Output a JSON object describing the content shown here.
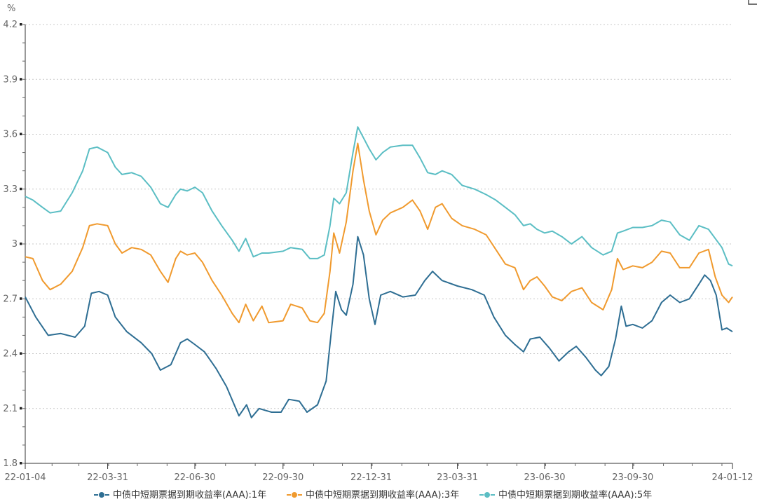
{
  "chart_data": {
    "type": "line",
    "unit": "%",
    "ylim": [
      1.8,
      4.2
    ],
    "yticks": [
      "4.2",
      "3.9",
      "3.6",
      "3.3",
      "3",
      "2.7",
      "2.4",
      "2.1",
      "1.8"
    ],
    "ytick_values": [
      4.2,
      3.9,
      3.6,
      3.3,
      3.0,
      2.7,
      2.4,
      2.1,
      1.8
    ],
    "x_range": [
      "2022-01-04",
      "2024-01-12"
    ],
    "xticks": [
      {
        "label": "22-01-04",
        "date": "2022-01-04"
      },
      {
        "label": "22-03-31",
        "date": "2022-03-31"
      },
      {
        "label": "22-06-30",
        "date": "2022-06-30"
      },
      {
        "label": "22-09-30",
        "date": "2022-09-30"
      },
      {
        "label": "22-12-31",
        "date": "2022-12-31"
      },
      {
        "label": "23-03-31",
        "date": "2023-03-31"
      },
      {
        "label": "23-06-30",
        "date": "2023-06-30"
      },
      {
        "label": "23-09-30",
        "date": "2023-09-30"
      },
      {
        "label": "24-01-12",
        "date": "2024-01-12"
      }
    ],
    "grid": true,
    "legend_position": "bottom",
    "series": [
      {
        "name": "中债中短期票据到期收益率(AAA):1年",
        "color": "#2e6e93",
        "points": [
          [
            "2022-01-04",
            2.71
          ],
          [
            "2022-01-15",
            2.6
          ],
          [
            "2022-01-28",
            2.5
          ],
          [
            "2022-02-10",
            2.51
          ],
          [
            "2022-02-25",
            2.49
          ],
          [
            "2022-03-07",
            2.55
          ],
          [
            "2022-03-14",
            2.73
          ],
          [
            "2022-03-22",
            2.74
          ],
          [
            "2022-03-31",
            2.72
          ],
          [
            "2022-04-08",
            2.6
          ],
          [
            "2022-04-20",
            2.52
          ],
          [
            "2022-05-05",
            2.46
          ],
          [
            "2022-05-16",
            2.4
          ],
          [
            "2022-05-25",
            2.31
          ],
          [
            "2022-06-05",
            2.34
          ],
          [
            "2022-06-15",
            2.46
          ],
          [
            "2022-06-22",
            2.48
          ],
          [
            "2022-06-30",
            2.45
          ],
          [
            "2022-07-10",
            2.41
          ],
          [
            "2022-07-22",
            2.32
          ],
          [
            "2022-08-02",
            2.22
          ],
          [
            "2022-08-15",
            2.06
          ],
          [
            "2022-08-23",
            2.12
          ],
          [
            "2022-08-28",
            2.05
          ],
          [
            "2022-09-05",
            2.1
          ],
          [
            "2022-09-18",
            2.08
          ],
          [
            "2022-09-28",
            2.08
          ],
          [
            "2022-10-06",
            2.15
          ],
          [
            "2022-10-17",
            2.14
          ],
          [
            "2022-10-25",
            2.08
          ],
          [
            "2022-11-05",
            2.12
          ],
          [
            "2022-11-14",
            2.25
          ],
          [
            "2022-11-20",
            2.55
          ],
          [
            "2022-11-24",
            2.74
          ],
          [
            "2022-11-30",
            2.64
          ],
          [
            "2022-12-05",
            2.61
          ],
          [
            "2022-12-12",
            2.78
          ],
          [
            "2022-12-17",
            3.04
          ],
          [
            "2022-12-23",
            2.94
          ],
          [
            "2022-12-29",
            2.7
          ],
          [
            "2023-01-04",
            2.56
          ],
          [
            "2023-01-10",
            2.72
          ],
          [
            "2023-01-20",
            2.74
          ],
          [
            "2023-02-02",
            2.71
          ],
          [
            "2023-02-15",
            2.72
          ],
          [
            "2023-02-25",
            2.8
          ],
          [
            "2023-03-05",
            2.85
          ],
          [
            "2023-03-15",
            2.8
          ],
          [
            "2023-03-31",
            2.77
          ],
          [
            "2023-04-15",
            2.75
          ],
          [
            "2023-04-28",
            2.72
          ],
          [
            "2023-05-08",
            2.6
          ],
          [
            "2023-05-20",
            2.5
          ],
          [
            "2023-05-30",
            2.45
          ],
          [
            "2023-06-08",
            2.41
          ],
          [
            "2023-06-15",
            2.48
          ],
          [
            "2023-06-25",
            2.49
          ],
          [
            "2023-07-05",
            2.43
          ],
          [
            "2023-07-15",
            2.36
          ],
          [
            "2023-07-25",
            2.41
          ],
          [
            "2023-08-02",
            2.44
          ],
          [
            "2023-08-12",
            2.38
          ],
          [
            "2023-08-22",
            2.31
          ],
          [
            "2023-08-28",
            2.28
          ],
          [
            "2023-09-05",
            2.33
          ],
          [
            "2023-09-12",
            2.48
          ],
          [
            "2023-09-18",
            2.66
          ],
          [
            "2023-09-23",
            2.55
          ],
          [
            "2023-09-30",
            2.56
          ],
          [
            "2023-10-10",
            2.54
          ],
          [
            "2023-10-20",
            2.58
          ],
          [
            "2023-10-30",
            2.68
          ],
          [
            "2023-11-08",
            2.72
          ],
          [
            "2023-11-18",
            2.68
          ],
          [
            "2023-11-28",
            2.7
          ],
          [
            "2023-12-08",
            2.78
          ],
          [
            "2023-12-14",
            2.83
          ],
          [
            "2023-12-20",
            2.8
          ],
          [
            "2023-12-26",
            2.72
          ],
          [
            "2024-01-01",
            2.53
          ],
          [
            "2024-01-06",
            2.54
          ],
          [
            "2024-01-12",
            2.52
          ]
        ]
      },
      {
        "name": "中债中短期票据到期收益率(AAA):3年",
        "color": "#f09a2e",
        "points": [
          [
            "2022-01-04",
            2.93
          ],
          [
            "2022-01-12",
            2.92
          ],
          [
            "2022-01-22",
            2.8
          ],
          [
            "2022-01-30",
            2.75
          ],
          [
            "2022-02-10",
            2.78
          ],
          [
            "2022-02-22",
            2.85
          ],
          [
            "2022-03-05",
            2.98
          ],
          [
            "2022-03-12",
            3.1
          ],
          [
            "2022-03-20",
            3.11
          ],
          [
            "2022-03-31",
            3.1
          ],
          [
            "2022-04-08",
            3.0
          ],
          [
            "2022-04-15",
            2.95
          ],
          [
            "2022-04-25",
            2.98
          ],
          [
            "2022-05-05",
            2.97
          ],
          [
            "2022-05-15",
            2.94
          ],
          [
            "2022-05-25",
            2.85
          ],
          [
            "2022-06-02",
            2.79
          ],
          [
            "2022-06-10",
            2.92
          ],
          [
            "2022-06-15",
            2.96
          ],
          [
            "2022-06-22",
            2.94
          ],
          [
            "2022-06-30",
            2.95
          ],
          [
            "2022-07-08",
            2.9
          ],
          [
            "2022-07-18",
            2.8
          ],
          [
            "2022-07-28",
            2.72
          ],
          [
            "2022-08-08",
            2.62
          ],
          [
            "2022-08-15",
            2.57
          ],
          [
            "2022-08-22",
            2.67
          ],
          [
            "2022-08-30",
            2.58
          ],
          [
            "2022-09-08",
            2.66
          ],
          [
            "2022-09-15",
            2.57
          ],
          [
            "2022-09-30",
            2.58
          ],
          [
            "2022-10-08",
            2.67
          ],
          [
            "2022-10-20",
            2.65
          ],
          [
            "2022-10-28",
            2.58
          ],
          [
            "2022-11-05",
            2.57
          ],
          [
            "2022-11-12",
            2.62
          ],
          [
            "2022-11-18",
            2.85
          ],
          [
            "2022-11-22",
            3.06
          ],
          [
            "2022-11-28",
            2.95
          ],
          [
            "2022-12-05",
            3.12
          ],
          [
            "2022-12-12",
            3.4
          ],
          [
            "2022-12-17",
            3.55
          ],
          [
            "2022-12-23",
            3.35
          ],
          [
            "2022-12-29",
            3.18
          ],
          [
            "2023-01-05",
            3.05
          ],
          [
            "2023-01-12",
            3.13
          ],
          [
            "2023-01-20",
            3.17
          ],
          [
            "2023-02-02",
            3.2
          ],
          [
            "2023-02-12",
            3.24
          ],
          [
            "2023-02-20",
            3.18
          ],
          [
            "2023-02-28",
            3.08
          ],
          [
            "2023-03-08",
            3.2
          ],
          [
            "2023-03-15",
            3.22
          ],
          [
            "2023-03-25",
            3.14
          ],
          [
            "2023-04-05",
            3.1
          ],
          [
            "2023-04-18",
            3.08
          ],
          [
            "2023-04-30",
            3.05
          ],
          [
            "2023-05-10",
            2.97
          ],
          [
            "2023-05-20",
            2.89
          ],
          [
            "2023-05-30",
            2.87
          ],
          [
            "2023-06-08",
            2.75
          ],
          [
            "2023-06-15",
            2.8
          ],
          [
            "2023-06-22",
            2.82
          ],
          [
            "2023-06-30",
            2.77
          ],
          [
            "2023-07-08",
            2.71
          ],
          [
            "2023-07-18",
            2.69
          ],
          [
            "2023-07-28",
            2.74
          ],
          [
            "2023-08-08",
            2.76
          ],
          [
            "2023-08-18",
            2.68
          ],
          [
            "2023-08-30",
            2.64
          ],
          [
            "2023-09-08",
            2.75
          ],
          [
            "2023-09-14",
            2.92
          ],
          [
            "2023-09-20",
            2.86
          ],
          [
            "2023-09-30",
            2.88
          ],
          [
            "2023-10-10",
            2.87
          ],
          [
            "2023-10-20",
            2.9
          ],
          [
            "2023-10-30",
            2.96
          ],
          [
            "2023-11-08",
            2.95
          ],
          [
            "2023-11-18",
            2.87
          ],
          [
            "2023-11-28",
            2.87
          ],
          [
            "2023-12-08",
            2.95
          ],
          [
            "2023-12-18",
            2.97
          ],
          [
            "2023-12-25",
            2.82
          ],
          [
            "2024-01-01",
            2.72
          ],
          [
            "2024-01-08",
            2.68
          ],
          [
            "2024-01-12",
            2.71
          ]
        ]
      },
      {
        "name": "中债中短期票据到期收益率(AAA):5年",
        "color": "#5bbec4",
        "points": [
          [
            "2022-01-04",
            3.26
          ],
          [
            "2022-01-12",
            3.24
          ],
          [
            "2022-01-22",
            3.2
          ],
          [
            "2022-01-30",
            3.17
          ],
          [
            "2022-02-10",
            3.18
          ],
          [
            "2022-02-22",
            3.28
          ],
          [
            "2022-03-05",
            3.4
          ],
          [
            "2022-03-12",
            3.52
          ],
          [
            "2022-03-20",
            3.53
          ],
          [
            "2022-03-31",
            3.5
          ],
          [
            "2022-04-08",
            3.42
          ],
          [
            "2022-04-15",
            3.38
          ],
          [
            "2022-04-25",
            3.39
          ],
          [
            "2022-05-05",
            3.37
          ],
          [
            "2022-05-15",
            3.31
          ],
          [
            "2022-05-25",
            3.22
          ],
          [
            "2022-06-02",
            3.2
          ],
          [
            "2022-06-10",
            3.27
          ],
          [
            "2022-06-15",
            3.3
          ],
          [
            "2022-06-22",
            3.29
          ],
          [
            "2022-06-30",
            3.31
          ],
          [
            "2022-07-08",
            3.28
          ],
          [
            "2022-07-18",
            3.18
          ],
          [
            "2022-07-28",
            3.1
          ],
          [
            "2022-08-08",
            3.02
          ],
          [
            "2022-08-15",
            2.96
          ],
          [
            "2022-08-22",
            3.03
          ],
          [
            "2022-08-30",
            2.93
          ],
          [
            "2022-09-08",
            2.95
          ],
          [
            "2022-09-15",
            2.95
          ],
          [
            "2022-09-30",
            2.96
          ],
          [
            "2022-10-08",
            2.98
          ],
          [
            "2022-10-20",
            2.97
          ],
          [
            "2022-10-28",
            2.92
          ],
          [
            "2022-11-05",
            2.92
          ],
          [
            "2022-11-12",
            2.94
          ],
          [
            "2022-11-18",
            3.1
          ],
          [
            "2022-11-22",
            3.25
          ],
          [
            "2022-11-28",
            3.22
          ],
          [
            "2022-12-05",
            3.28
          ],
          [
            "2022-12-12",
            3.5
          ],
          [
            "2022-12-17",
            3.64
          ],
          [
            "2022-12-23",
            3.58
          ],
          [
            "2022-12-29",
            3.52
          ],
          [
            "2023-01-05",
            3.46
          ],
          [
            "2023-01-12",
            3.5
          ],
          [
            "2023-01-20",
            3.53
          ],
          [
            "2023-02-02",
            3.54
          ],
          [
            "2023-02-12",
            3.54
          ],
          [
            "2023-02-20",
            3.47
          ],
          [
            "2023-02-28",
            3.39
          ],
          [
            "2023-03-08",
            3.38
          ],
          [
            "2023-03-15",
            3.4
          ],
          [
            "2023-03-25",
            3.38
          ],
          [
            "2023-04-05",
            3.32
          ],
          [
            "2023-04-18",
            3.3
          ],
          [
            "2023-04-30",
            3.27
          ],
          [
            "2023-05-10",
            3.24
          ],
          [
            "2023-05-20",
            3.2
          ],
          [
            "2023-05-30",
            3.16
          ],
          [
            "2023-06-08",
            3.1
          ],
          [
            "2023-06-15",
            3.11
          ],
          [
            "2023-06-22",
            3.08
          ],
          [
            "2023-06-30",
            3.06
          ],
          [
            "2023-07-08",
            3.07
          ],
          [
            "2023-07-18",
            3.04
          ],
          [
            "2023-07-28",
            3.0
          ],
          [
            "2023-08-08",
            3.04
          ],
          [
            "2023-08-18",
            2.98
          ],
          [
            "2023-08-30",
            2.94
          ],
          [
            "2023-09-08",
            2.96
          ],
          [
            "2023-09-14",
            3.06
          ],
          [
            "2023-09-20",
            3.07
          ],
          [
            "2023-09-30",
            3.09
          ],
          [
            "2023-10-10",
            3.09
          ],
          [
            "2023-10-20",
            3.1
          ],
          [
            "2023-10-30",
            3.13
          ],
          [
            "2023-11-08",
            3.12
          ],
          [
            "2023-11-18",
            3.05
          ],
          [
            "2023-11-28",
            3.02
          ],
          [
            "2023-12-08",
            3.1
          ],
          [
            "2023-12-18",
            3.08
          ],
          [
            "2023-12-25",
            3.03
          ],
          [
            "2024-01-01",
            2.98
          ],
          [
            "2024-01-08",
            2.89
          ],
          [
            "2024-01-12",
            2.88
          ]
        ]
      }
    ]
  }
}
